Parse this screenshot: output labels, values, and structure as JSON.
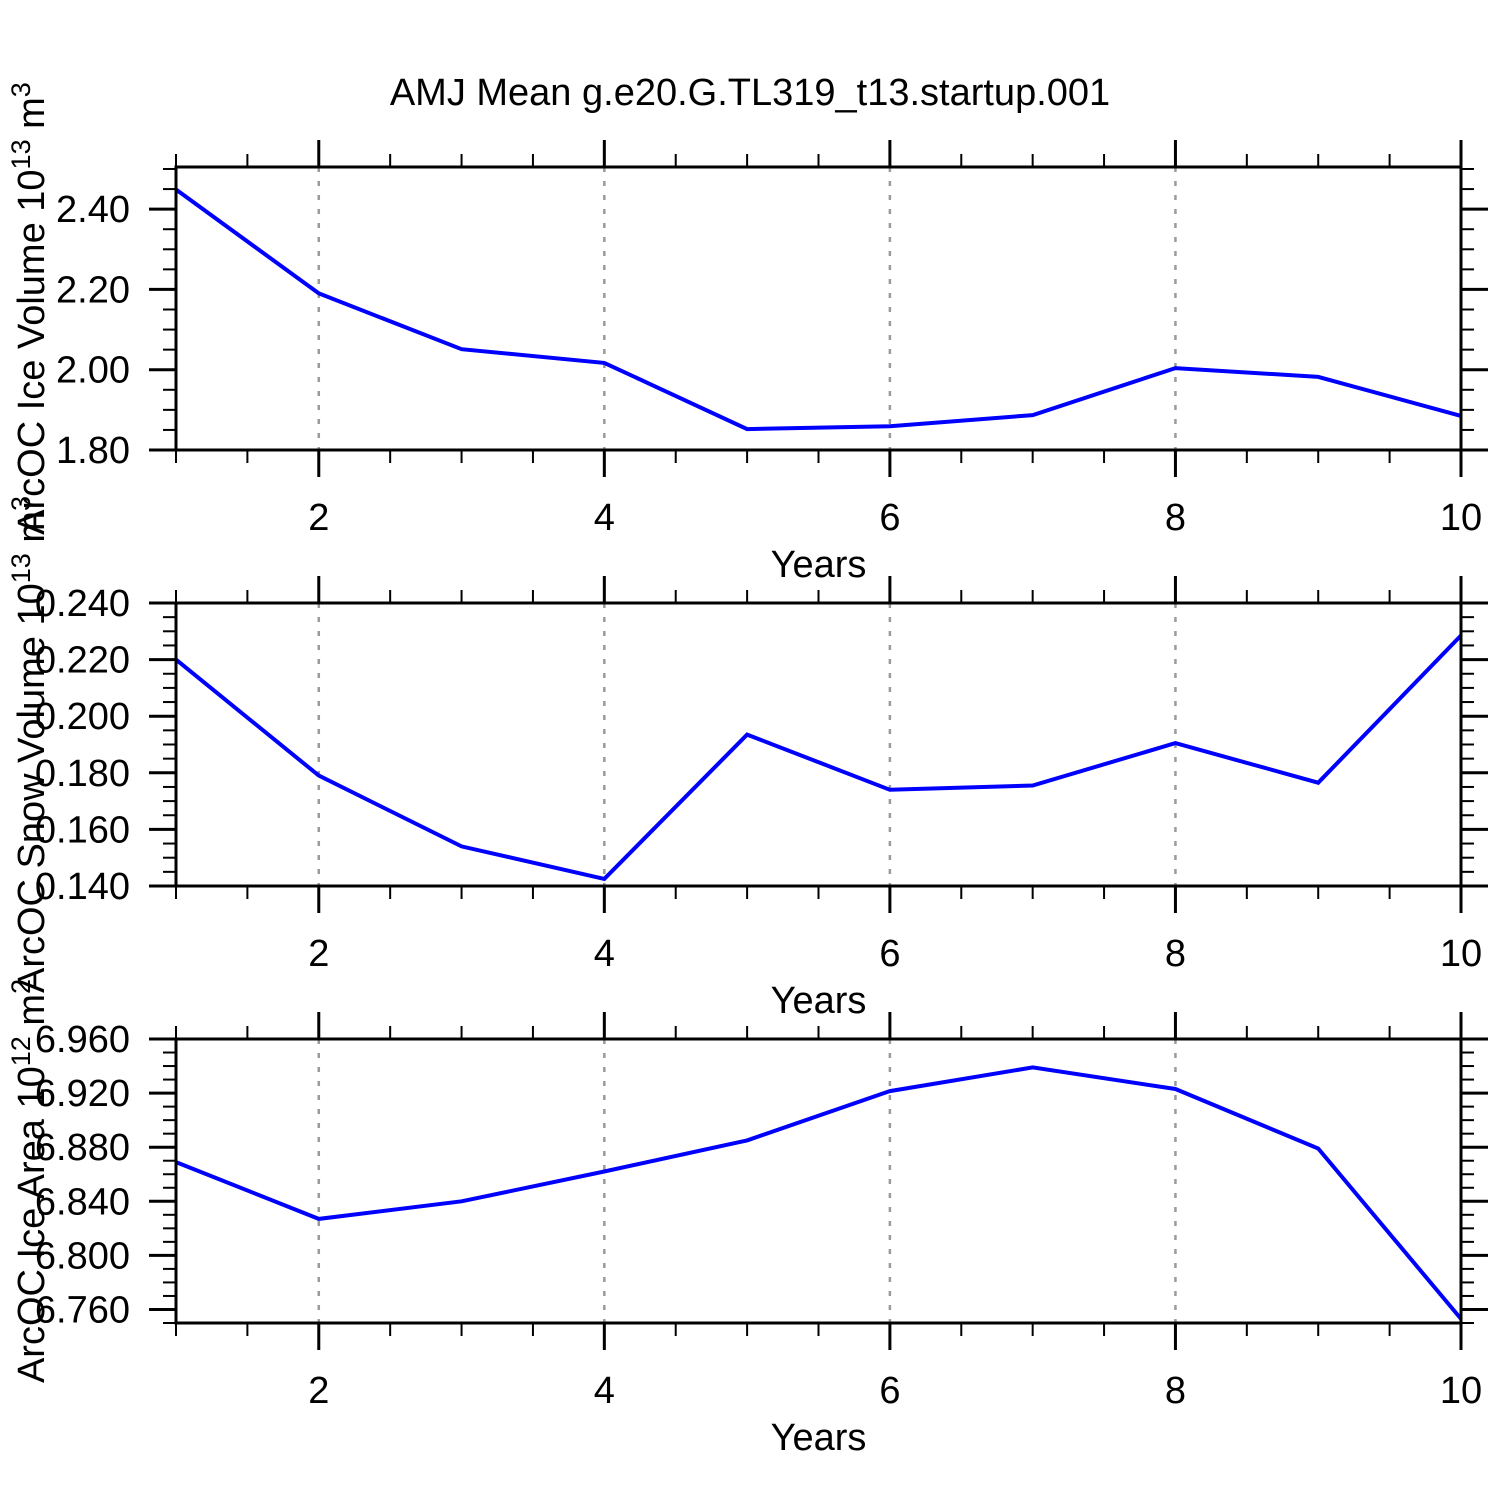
{
  "title": "AMJ Mean g.e20.G.TL319_t13.startup.001",
  "colors": {
    "series": "#0000ff",
    "axis": "#000000",
    "grid": "#9a9a9a",
    "background": "#ffffff",
    "text": "#000000"
  },
  "x_axis": {
    "label": "Years",
    "min": 1,
    "max": 10,
    "major_ticks": [
      2,
      4,
      6,
      8,
      10
    ],
    "major_tick_labels": [
      "2",
      "4",
      "6",
      "8",
      "10"
    ],
    "minor_step": 0.5,
    "gridline_years": [
      2,
      4,
      6,
      8
    ]
  },
  "chart_data": [
    {
      "type": "line",
      "ylabel": "ArcOC Ice Volume 10^13 m^3",
      "ylabel_segments": [
        {
          "text": "ArcOC Ice Volume 10"
        },
        {
          "text": "13",
          "sup": true
        },
        {
          "text": " m"
        },
        {
          "text": "3",
          "sup": true
        }
      ],
      "xlabel": "Years",
      "x": [
        1,
        2,
        3,
        4,
        5,
        6,
        7,
        8,
        9,
        10
      ],
      "values": [
        2.449,
        2.19,
        2.051,
        2.017,
        1.852,
        1.859,
        1.887,
        2.004,
        1.982,
        1.885
      ],
      "ylim": [
        1.8,
        2.505
      ],
      "ytick_values": [
        1.8,
        2.0,
        2.2,
        2.4
      ],
      "ytick_labels": [
        "1.80",
        "2.00",
        "2.20",
        "2.40"
      ],
      "y_minor_step": 0.05,
      "grid": "x-dashed-only"
    },
    {
      "type": "line",
      "ylabel": "ArcOC Snow Volume 10^13 m^3",
      "ylabel_segments": [
        {
          "text": "ArcOC Snow Volume 10"
        },
        {
          "text": "13",
          "sup": true
        },
        {
          "text": " m"
        },
        {
          "text": "3",
          "sup": true
        }
      ],
      "xlabel": "Years",
      "x": [
        1,
        2,
        3,
        4,
        5,
        6,
        7,
        8,
        9,
        10
      ],
      "values": [
        0.22,
        0.179,
        0.154,
        0.1425,
        0.1935,
        0.174,
        0.1755,
        0.1905,
        0.1765,
        0.2285
      ],
      "ylim": [
        0.14,
        0.24
      ],
      "ytick_values": [
        0.14,
        0.16,
        0.18,
        0.2,
        0.22,
        0.24
      ],
      "ytick_labels": [
        "0.140",
        "0.160",
        "0.180",
        "0.200",
        "0.220",
        "0.240"
      ],
      "y_minor_step": 0.005,
      "grid": "x-dashed-only"
    },
    {
      "type": "line",
      "ylabel": "ArcOC Ice Area 10^12 m^2",
      "ylabel_segments": [
        {
          "text": "ArcOC Ice Area 10"
        },
        {
          "text": "12",
          "sup": true
        },
        {
          "text": " m"
        },
        {
          "text": "2",
          "sup": true
        }
      ],
      "xlabel": "Years",
      "x": [
        1,
        2,
        3,
        4,
        5,
        6,
        7,
        8,
        9,
        10
      ],
      "values": [
        6.869,
        6.827,
        6.84,
        6.862,
        6.885,
        6.9215,
        6.939,
        6.923,
        6.879,
        6.753
      ],
      "ylim": [
        6.75,
        6.96
      ],
      "ytick_values": [
        6.76,
        6.8,
        6.84,
        6.88,
        6.92,
        6.96
      ],
      "ytick_labels": [
        "6.760",
        "6.800",
        "6.840",
        "6.880",
        "6.920",
        "6.960"
      ],
      "y_minor_step": 0.01,
      "grid": "x-dashed-only"
    }
  ]
}
